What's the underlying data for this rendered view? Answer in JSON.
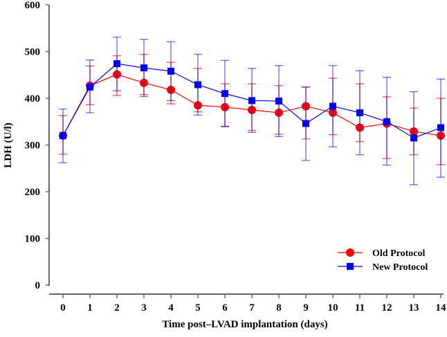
{
  "chart_data": {
    "type": "line",
    "title": "",
    "xlabel": "Time post–LVAD implantation (days)",
    "ylabel": "LDH (U/l)",
    "xlim": [
      0,
      14
    ],
    "ylim": [
      0,
      600
    ],
    "x": [
      0,
      1,
      2,
      3,
      4,
      5,
      6,
      7,
      8,
      9,
      10,
      11,
      12,
      13,
      14
    ],
    "x_ticks": [
      "0",
      "1",
      "2",
      "3",
      "4",
      "5",
      "6",
      "7",
      "8",
      "9",
      "10",
      "11",
      "12",
      "13",
      "14"
    ],
    "y_ticks": [
      "0",
      "100",
      "200",
      "300",
      "400",
      "500",
      "600"
    ],
    "grid": false,
    "legend_position": "bottom-right",
    "series": [
      {
        "name": "Old Protocol",
        "color": "#ff0000",
        "marker": "circle",
        "values": [
          320,
          427,
          451,
          433,
          418,
          385,
          381,
          375,
          369,
          383,
          369,
          337,
          346,
          329,
          320
        ],
        "upper": [
          363,
          469,
          491,
          494,
          477,
          464,
          431,
          431,
          427,
          424,
          443,
          431,
          403,
          379,
          400
        ],
        "lower": [
          280,
          386,
          406,
          408,
          388,
          371,
          340,
          331,
          323,
          313,
          322,
          307,
          271,
          279,
          258
        ]
      },
      {
        "name": "New Protocol",
        "color": "#0000ff",
        "marker": "square",
        "values": [
          320,
          424,
          474,
          465,
          458,
          429,
          410,
          395,
          394,
          346,
          383,
          369,
          350,
          315,
          337
        ],
        "upper": [
          377,
          482,
          531,
          526,
          521,
          494,
          481,
          464,
          470,
          424,
          470,
          459,
          445,
          414,
          441
        ],
        "lower": [
          262,
          369,
          416,
          404,
          395,
          364,
          339,
          327,
          318,
          267,
          296,
          279,
          257,
          215,
          231
        ]
      }
    ]
  }
}
